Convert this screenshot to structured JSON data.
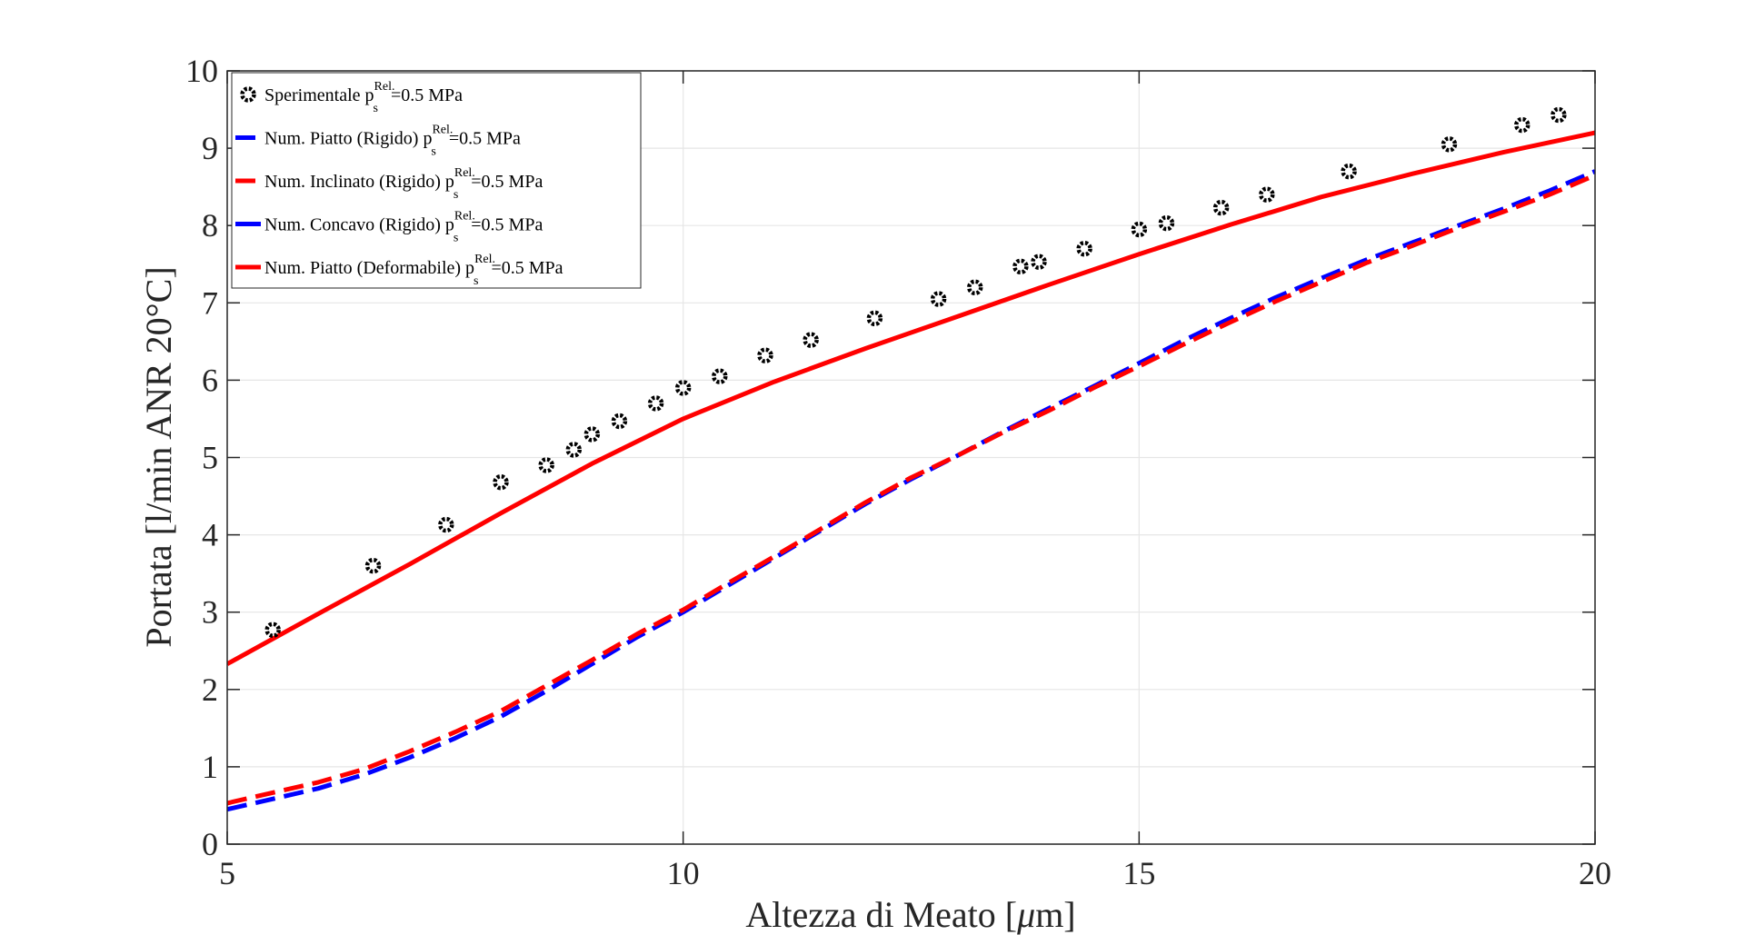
{
  "chart_data": {
    "type": "line",
    "xlabel_main": "Altezza di Meato [",
    "xlabel_mu": "μ",
    "xlabel_end": "m]",
    "ylabel": "Portata [l/min ANR 20°C]",
    "xlim": [
      5,
      20
    ],
    "ylim": [
      0,
      10
    ],
    "xticks": [
      "5",
      "10",
      "15",
      "20"
    ],
    "yticks": [
      "0",
      "1",
      "2",
      "3",
      "4",
      "5",
      "6",
      "7",
      "8",
      "9",
      "10"
    ],
    "grid": true,
    "legend_position": "top-left",
    "legend": [
      {
        "prefix": "Sperimentale p",
        "sub": "s",
        "sup": "Rel.",
        "suffix": "=0.5 MPa",
        "marker": "circle-ring",
        "color": "#000000"
      },
      {
        "prefix": "Num. Piatto (Rigido) p",
        "sub": "s",
        "sup": "Rel.",
        "suffix": "=0.5 MPa",
        "marker": "dash",
        "color": "#0000ff"
      },
      {
        "prefix": "Num. Inclinato (Rigido) p",
        "sub": "s",
        "sup": "Rel.",
        "suffix": "=0.5 MPa",
        "marker": "dash",
        "color": "#ff0000"
      },
      {
        "prefix": "Num. Concavo (Rigido) p",
        "sub": "s",
        "sup": "Rel.",
        "suffix": "=0.5 MPa",
        "marker": "solid",
        "color": "#0000ff"
      },
      {
        "prefix": "Num. Piatto (Deformabile) p",
        "sub": "s",
        "sup": "Rel.",
        "suffix": "=0.5 MPa",
        "marker": "solid",
        "color": "#ff0000"
      }
    ],
    "series": [
      {
        "style": "marker",
        "color": "#000000",
        "x": [
          5.5,
          6.6,
          7.4,
          8.0,
          8.5,
          8.8,
          9.0,
          9.3,
          9.7,
          10.0,
          10.4,
          10.9,
          11.4,
          12.1,
          12.8,
          13.2,
          13.7,
          13.9,
          14.4,
          15.0,
          15.3,
          15.9,
          16.4,
          17.3,
          18.4,
          19.2,
          19.6
        ],
        "y": [
          2.77,
          3.6,
          4.13,
          4.68,
          4.9,
          5.1,
          5.3,
          5.47,
          5.7,
          5.9,
          6.05,
          6.32,
          6.52,
          6.8,
          7.05,
          7.2,
          7.47,
          7.53,
          7.7,
          7.95,
          8.03,
          8.23,
          8.4,
          8.7,
          9.05,
          9.3,
          9.43
        ]
      },
      {
        "style": "dash",
        "color": "#0000ff",
        "x": [
          5,
          6,
          6.5,
          7,
          7.5,
          8,
          8.5,
          9,
          9.5,
          10,
          10.5,
          11,
          11.5,
          12,
          12.5,
          13,
          13.5,
          14,
          14.5,
          15,
          15.5,
          16,
          16.5,
          17,
          17.5,
          18,
          18.5,
          19,
          19.5,
          20
        ],
        "y": [
          0.45,
          0.72,
          0.9,
          1.12,
          1.37,
          1.65,
          1.98,
          2.33,
          2.68,
          3.0,
          3.35,
          3.7,
          4.05,
          4.4,
          4.72,
          5.02,
          5.33,
          5.63,
          5.92,
          6.22,
          6.52,
          6.8,
          7.07,
          7.32,
          7.56,
          7.78,
          8.0,
          8.22,
          8.45,
          8.7
        ]
      },
      {
        "style": "dash",
        "color": "#ff0000",
        "x": [
          5,
          6,
          6.5,
          7,
          7.5,
          8,
          8.5,
          9,
          9.5,
          10,
          10.5,
          11,
          11.5,
          12,
          12.5,
          13,
          13.5,
          14,
          14.5,
          15,
          15.5,
          16,
          16.5,
          17,
          17.5,
          18,
          18.5,
          19,
          19.5,
          20
        ],
        "y": [
          0.53,
          0.8,
          0.97,
          1.2,
          1.45,
          1.72,
          2.05,
          2.38,
          2.72,
          3.03,
          3.38,
          3.72,
          4.07,
          4.42,
          4.74,
          5.02,
          5.32,
          5.6,
          5.9,
          6.18,
          6.47,
          6.75,
          7.02,
          7.27,
          7.52,
          7.74,
          7.97,
          8.18,
          8.4,
          8.65
        ]
      },
      {
        "style": "solid",
        "color": "#ff0000",
        "x": [
          5,
          6,
          7,
          8,
          9,
          10,
          11,
          12,
          13,
          14,
          15,
          16,
          17,
          18,
          19,
          20
        ],
        "y": [
          2.33,
          2.98,
          3.62,
          4.28,
          4.92,
          5.5,
          5.98,
          6.41,
          6.82,
          7.23,
          7.63,
          8.01,
          8.37,
          8.67,
          8.95,
          9.2
        ]
      }
    ]
  }
}
